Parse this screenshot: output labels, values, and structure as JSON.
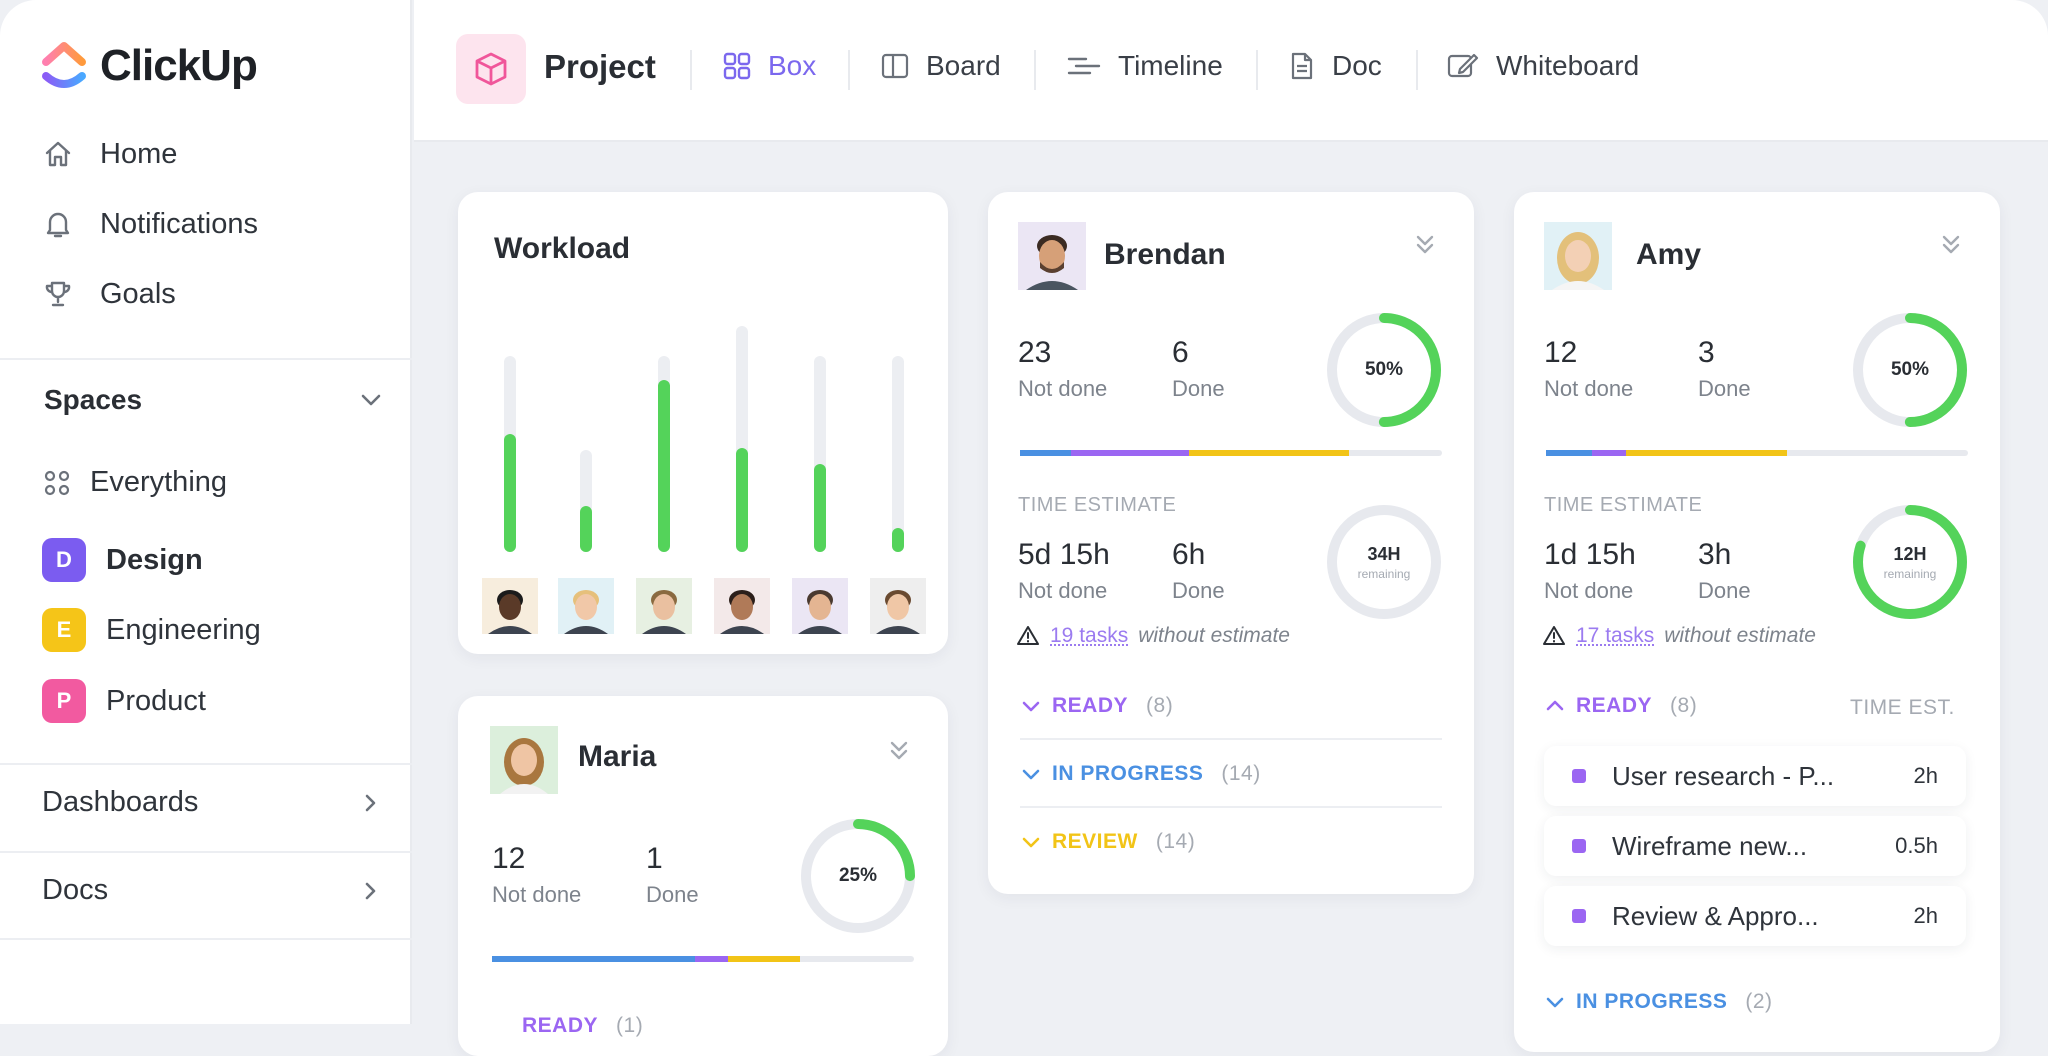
{
  "app": {
    "logo_text": "ClickUp"
  },
  "sidebar": {
    "nav": [
      {
        "label": "Home",
        "icon": "home-icon"
      },
      {
        "label": "Notifications",
        "icon": "bell-icon"
      },
      {
        "label": "Goals",
        "icon": "trophy-icon"
      }
    ],
    "spaces_label": "Spaces",
    "everything_label": "Everything",
    "spaces": [
      {
        "badge": "D",
        "label": "Design",
        "color": "#7b5cf0",
        "active": true
      },
      {
        "badge": "E",
        "label": "Engineering",
        "color": "#f5c518"
      },
      {
        "badge": "P",
        "label": "Product",
        "color": "#f25aa0"
      }
    ],
    "dashboards_label": "Dashboards",
    "docs_label": "Docs"
  },
  "header": {
    "title": "Project",
    "tabs": [
      {
        "label": "Box",
        "icon": "grid-icon",
        "active": true
      },
      {
        "label": "Board",
        "icon": "board-icon"
      },
      {
        "label": "Timeline",
        "icon": "timeline-icon"
      },
      {
        "label": "Doc",
        "icon": "doc-icon"
      },
      {
        "label": "Whiteboard",
        "icon": "whiteboard-icon"
      }
    ]
  },
  "workload": {
    "title": "Workload",
    "bars": [
      0.6,
      0.45,
      0.88,
      0.46,
      0.45,
      0.12
    ]
  },
  "brendan": {
    "name": "Brendan",
    "not_done": "23",
    "not_done_label": "Not done",
    "done": "6",
    "done_label": "Done",
    "percent_text": "50%",
    "percent": 0.5,
    "time_estimate_label": "TIME ESTIMATE",
    "est_not_done": "5d 15h",
    "est_done": "6h",
    "remaining_value": "34H",
    "remaining_label": "remaining",
    "remaining_fraction": 0,
    "warn_link": "19 tasks",
    "warn_text": "without estimate",
    "statuses": [
      {
        "label": "READY",
        "count": "(8)",
        "color": "#9b66f2"
      },
      {
        "label": "IN PROGRESS",
        "count": "(14)",
        "color": "#4a90e2"
      },
      {
        "label": "REVIEW",
        "count": "(14)",
        "color": "#f2c417"
      }
    ]
  },
  "amy": {
    "name": "Amy",
    "not_done": "12",
    "not_done_label": "Not done",
    "done": "3",
    "done_label": "Done",
    "percent_text": "50%",
    "percent": 0.5,
    "time_estimate_label": "TIME ESTIMATE",
    "est_not_done": "1d 15h",
    "est_done": "3h",
    "remaining_value": "12H",
    "remaining_label": "remaining",
    "remaining_fraction": 0.8,
    "warn_link": "17 tasks",
    "warn_text": "without estimate",
    "ready_label": "READY",
    "ready_count": "(8)",
    "time_est_header": "TIME EST.",
    "tasks": [
      {
        "name": "User research - P...",
        "est": "2h"
      },
      {
        "name": "Wireframe new...",
        "est": "0.5h"
      },
      {
        "name": "Review & Appro...",
        "est": "2h"
      }
    ],
    "in_progress_label": "IN PROGRESS",
    "in_progress_count": "(2)"
  },
  "maria": {
    "name": "Maria",
    "not_done": "12",
    "not_done_label": "Not done",
    "done": "1",
    "done_label": "Done",
    "percent_text": "25%",
    "percent": 0.25,
    "ready_label": "READY",
    "ready_count": "(1)"
  },
  "colors": {
    "accent": "#7b68ee",
    "green": "#54d35a",
    "blue": "#4a90e2",
    "purple": "#9b66f2",
    "yellow": "#f2c417",
    "track": "#e7e9ee"
  }
}
